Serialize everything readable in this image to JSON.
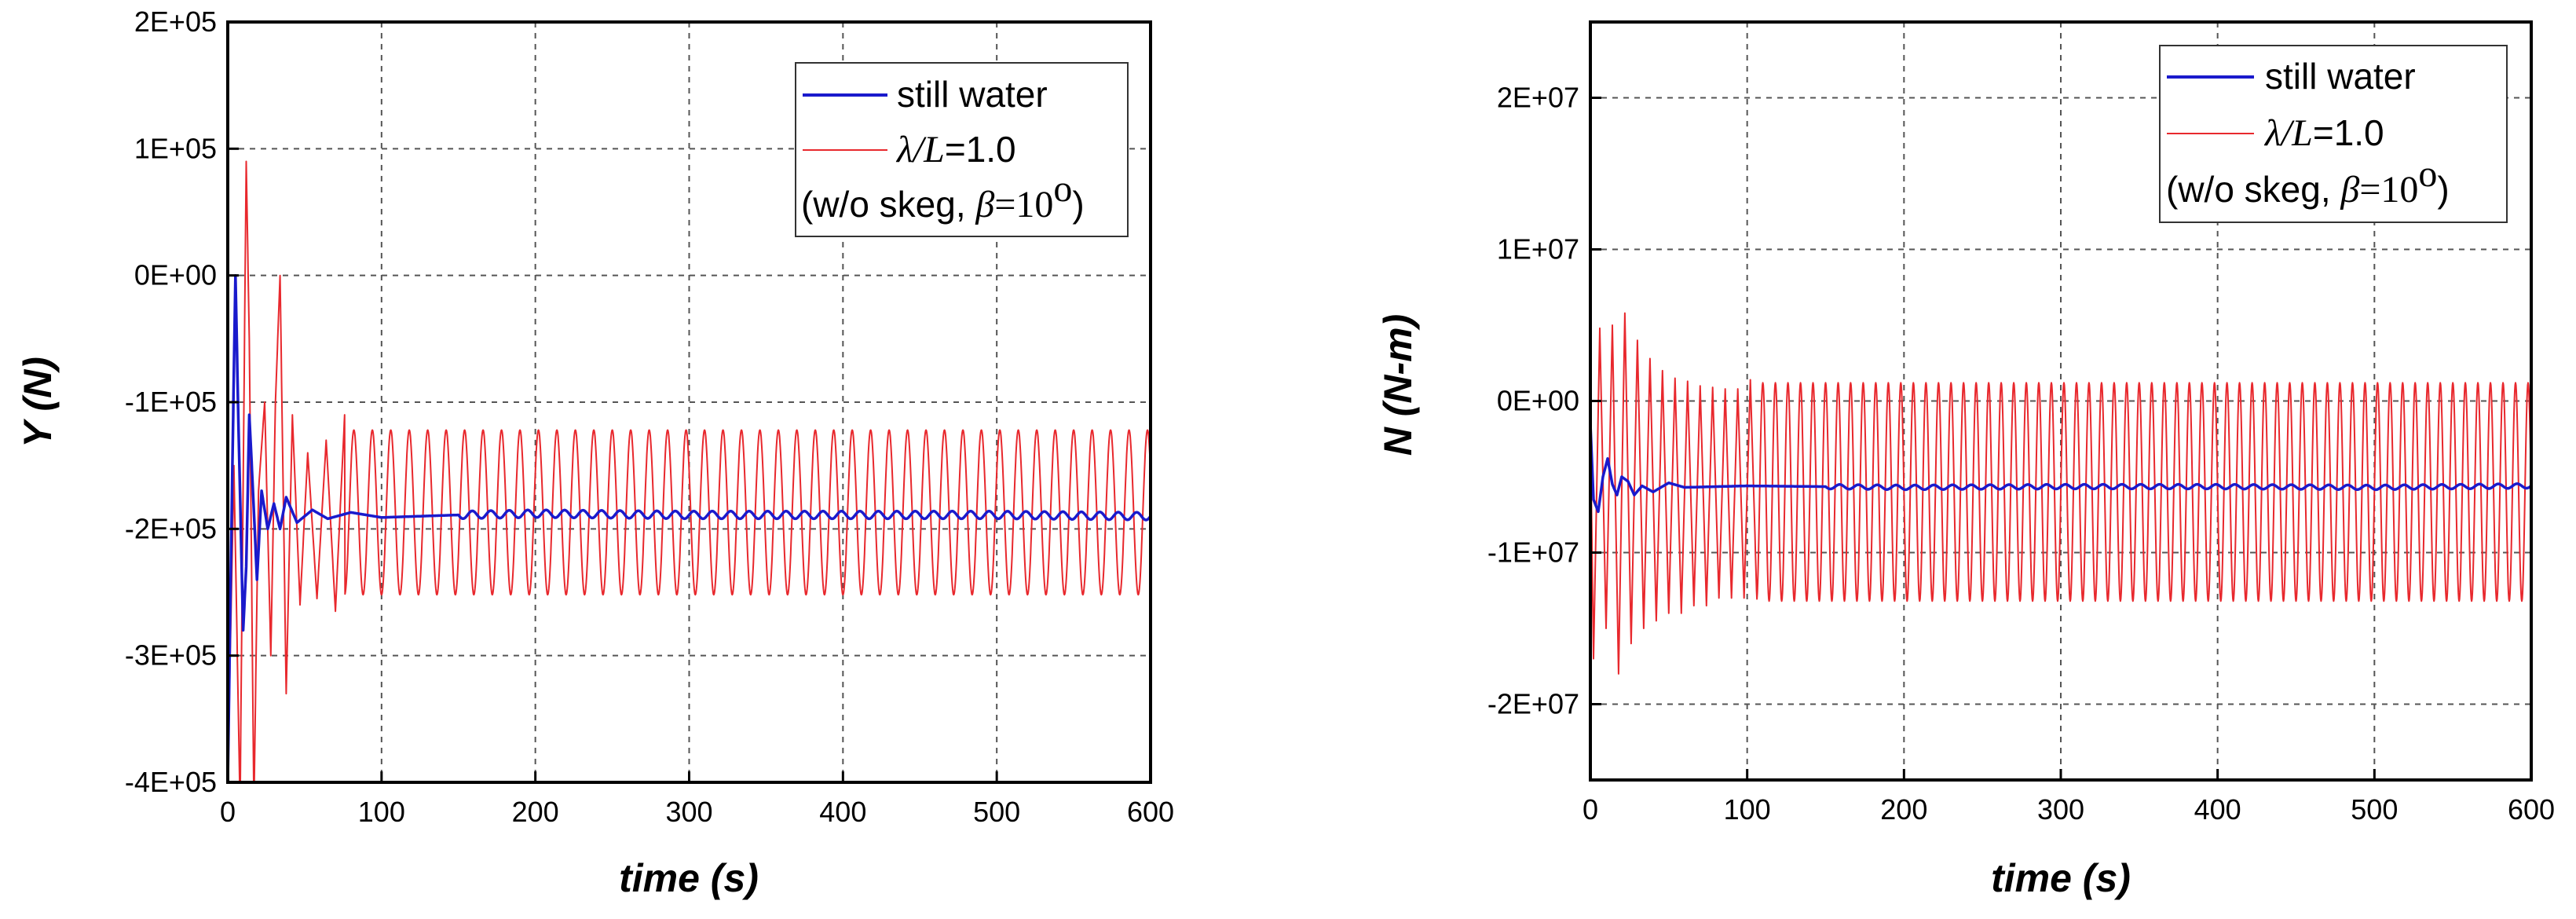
{
  "chart_data": [
    {
      "type": "line",
      "id": "left",
      "xlabel": "time (s)",
      "ylabel": "Y (N)",
      "xlim": [
        0,
        600
      ],
      "ylim": [
        -400000,
        200000
      ],
      "xticks": [
        0,
        100,
        200,
        300,
        400,
        500,
        600
      ],
      "xtick_labels": [
        "0",
        "100",
        "200",
        "300",
        "400",
        "500",
        "600"
      ],
      "yticks": [
        200000,
        100000,
        0,
        -100000,
        -200000,
        -300000,
        -400000
      ],
      "ytick_labels": [
        "2E+05",
        "1E+05",
        "0E+00",
        "-1E+05",
        "-2E+05",
        "-3E+05",
        "-4E+05"
      ],
      "grid": true,
      "legend": {
        "position": "top-right",
        "entries": [
          {
            "label": "still water",
            "color": "#1a1acc"
          },
          {
            "label_italic": "λ/L",
            "label_rest": "=1.0",
            "color": "#e8282d"
          }
        ],
        "note_prefix": "(w/o skeg, ",
        "note_beta": "β",
        "note_eq": "=10",
        "note_deg": "o",
        "note_suffix": ")"
      },
      "series": [
        {
          "name": "still water",
          "color": "#1a1acc",
          "t": [
            0,
            3,
            5,
            7,
            10,
            12,
            14,
            16,
            19,
            22,
            26,
            30,
            34,
            38,
            45,
            55,
            65,
            80,
            100,
            150,
            200,
            300,
            400,
            500,
            600
          ],
          "y": [
            -400000,
            -150000,
            0,
            -120000,
            -280000,
            -230000,
            -110000,
            -160000,
            -240000,
            -170000,
            -200000,
            -180000,
            -200000,
            -175000,
            -195000,
            -185000,
            -192000,
            -187000,
            -191000,
            -189000,
            -188000,
            -189000,
            -189000,
            -189000,
            -190000
          ],
          "steady_amp": 3000,
          "period": 12
        },
        {
          "name": "λ/L=1.0",
          "color": "#e8282d",
          "t": [
            0,
            4,
            8,
            12,
            14,
            17,
            20,
            24,
            28,
            31,
            34,
            38,
            42,
            47,
            52,
            58,
            64,
            70,
            76
          ],
          "y": [
            -400000,
            -150000,
            -420000,
            90000,
            -50000,
            -420000,
            -170000,
            -100000,
            -300000,
            -100000,
            0,
            -330000,
            -110000,
            -260000,
            -140000,
            -255000,
            -130000,
            -265000,
            -110000
          ],
          "steady_mean": -187000,
          "steady_amp": 65000,
          "period": 12,
          "start": 76
        }
      ]
    },
    {
      "type": "line",
      "id": "right",
      "xlabel": "time (s)",
      "ylabel": "N (N-m)",
      "xlim": [
        0,
        600
      ],
      "ylim": [
        -25000000,
        25000000
      ],
      "xticks": [
        0,
        100,
        200,
        300,
        400,
        500,
        600
      ],
      "xtick_labels": [
        "0",
        "100",
        "200",
        "300",
        "400",
        "500",
        "600"
      ],
      "yticks": [
        20000000,
        10000000,
        0,
        -10000000,
        -20000000
      ],
      "ytick_labels": [
        "2E+07",
        "1E+07",
        "0E+00",
        "-1E+07",
        "-2E+07"
      ],
      "grid": true,
      "legend": {
        "position": "top-right",
        "entries": [
          {
            "label": "still water",
            "color": "#1a1acc"
          },
          {
            "label_italic": "λ/L",
            "label_rest": "=1.0",
            "color": "#e8282d"
          }
        ],
        "note_prefix": "(w/o skeg, ",
        "note_beta": "β",
        "note_eq": "=10",
        "note_deg": "o",
        "note_suffix": ")"
      },
      "series": [
        {
          "name": "still water",
          "color": "#1a1acc",
          "t": [
            0,
            2,
            5,
            8,
            11,
            14,
            17,
            20,
            24,
            28,
            33,
            40,
            50,
            60,
            100,
            200,
            300,
            400,
            500,
            600
          ],
          "y": [
            -1500000,
            -6500000,
            -7300000,
            -5000000,
            -3800000,
            -5500000,
            -6200000,
            -5000000,
            -5300000,
            -6200000,
            -5600000,
            -6000000,
            -5400000,
            -5700000,
            -5600000,
            -5700000,
            -5650000,
            -5650000,
            -5700000,
            -5600000
          ],
          "steady_amp": 150000,
          "period": 12
        },
        {
          "name": "λ/L=1.0",
          "color": "#e8282d",
          "t": [
            0,
            2,
            6,
            10,
            14,
            18,
            22,
            26,
            30,
            34,
            38,
            42,
            46,
            50,
            54,
            58,
            62,
            66,
            70,
            74,
            78,
            82,
            86,
            90,
            94,
            98,
            102,
            106
          ],
          "y": [
            -1500000,
            -17000000,
            4800000,
            -15000000,
            5000000,
            -18000000,
            5800000,
            -16000000,
            4000000,
            -15000000,
            2800000,
            -14500000,
            2000000,
            -14000000,
            1500000,
            -14000000,
            1300000,
            -13500000,
            1000000,
            -13500000,
            900000,
            -13000000,
            800000,
            -13000000,
            800000,
            -13000000,
            1400000,
            -12500000
          ],
          "steady_mean": -6000000,
          "steady_amp": 7200000,
          "period": 8,
          "start": 106
        }
      ]
    }
  ]
}
